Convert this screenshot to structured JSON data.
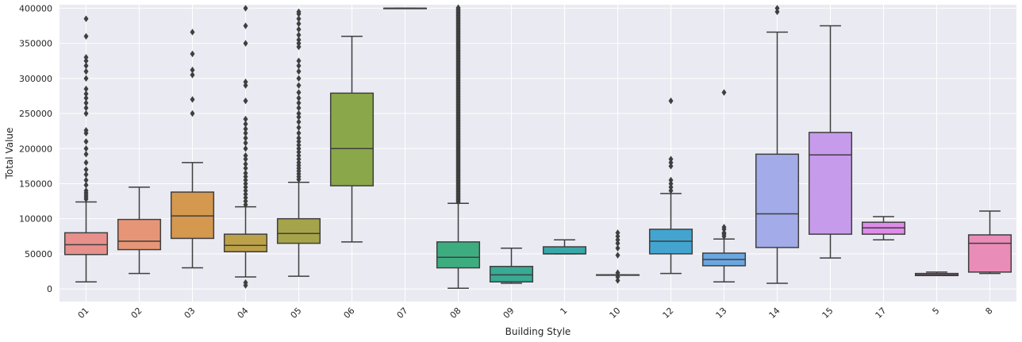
{
  "chart_data": {
    "type": "box",
    "xlabel": "Building Style",
    "ylabel": "Total Value",
    "ylim": [
      -18000,
      405000
    ],
    "yticks": [
      0,
      50000,
      100000,
      150000,
      200000,
      250000,
      300000,
      350000,
      400000
    ],
    "ytick_labels": [
      "0",
      "50000",
      "100000",
      "150000",
      "200000",
      "250000",
      "300000",
      "350000",
      "400000"
    ],
    "grid": true,
    "categories": [
      "01",
      "02",
      "03",
      "04",
      "05",
      "06",
      "07",
      "08",
      "09",
      "1",
      "10",
      "12",
      "13",
      "14",
      "15",
      "17",
      "5",
      "8"
    ],
    "boxes": [
      {
        "category": "01",
        "color": "#e8908c",
        "whisker_low": 10000,
        "q1": 49000,
        "median": 63000,
        "q3": 80000,
        "whisker_high": 124000,
        "outliers": [
          128000,
          131000,
          134000,
          137000,
          140000,
          148000,
          155000,
          163000,
          170000,
          180000,
          192000,
          200000,
          210000,
          222000,
          226000,
          250000,
          258000,
          265000,
          272000,
          278000,
          285000,
          300000,
          310000,
          318000,
          325000,
          330000,
          360000,
          385000
        ]
      },
      {
        "category": "02",
        "color": "#e69677",
        "whisker_low": 22000,
        "q1": 56000,
        "median": 68000,
        "q3": 99000,
        "whisker_high": 145000,
        "outliers": []
      },
      {
        "category": "03",
        "color": "#d5984f",
        "whisker_low": 30000,
        "q1": 72000,
        "median": 104000,
        "q3": 138000,
        "whisker_high": 180000,
        "outliers": [
          250000,
          270000,
          305000,
          312000,
          335000,
          366000
        ]
      },
      {
        "category": "04",
        "color": "#bca149",
        "whisker_low": 17000,
        "q1": 53000,
        "median": 62000,
        "q3": 78000,
        "whisker_high": 117000,
        "outliers": [
          5000,
          9000,
          120000,
          125000,
          130000,
          135000,
          140000,
          145000,
          150000,
          155000,
          160000,
          165000,
          172000,
          178000,
          185000,
          190000,
          200000,
          208000,
          215000,
          222000,
          228000,
          235000,
          242000,
          268000,
          290000,
          295000,
          350000,
          375000,
          400000
        ]
      },
      {
        "category": "05",
        "color": "#a5a44a",
        "whisker_low": 18000,
        "q1": 65000,
        "median": 79000,
        "q3": 100000,
        "whisker_high": 152000,
        "outliers": [
          156000,
          160000,
          164000,
          168000,
          172000,
          176000,
          180000,
          185000,
          190000,
          195000,
          200000,
          205000,
          210000,
          215000,
          222000,
          230000,
          238000,
          245000,
          250000,
          258000,
          265000,
          272000,
          280000,
          290000,
          300000,
          310000,
          318000,
          325000,
          345000,
          350000,
          355000,
          362000,
          370000,
          378000,
          385000,
          392000,
          395000
        ]
      },
      {
        "category": "06",
        "color": "#8aa849",
        "whisker_low": 67000,
        "q1": 147000,
        "median": 200000,
        "q3": 279000,
        "whisker_high": 360000,
        "outliers": []
      },
      {
        "category": "07",
        "color": "#4fac5a",
        "whisker_low": 400000,
        "q1": 400000,
        "median": 400000,
        "q3": 400000,
        "whisker_high": 400000,
        "outliers": []
      },
      {
        "category": "08",
        "color": "#3dad80",
        "whisker_low": 1000,
        "q1": 30000,
        "median": 45000,
        "q3": 67000,
        "whisker_high": 122000,
        "outliers_dense_range": [
          124000,
          402000
        ]
      },
      {
        "category": "09",
        "color": "#38aa95",
        "whisker_low": 8000,
        "q1": 10000,
        "median": 20000,
        "q3": 32000,
        "whisker_high": 58000,
        "outliers": []
      },
      {
        "category": "1",
        "color": "#3aa7a9",
        "whisker_low": 50000,
        "q1": 50000,
        "median": 50000,
        "q3": 60000,
        "whisker_high": 70000,
        "outliers": []
      },
      {
        "category": "10",
        "color": "#3ca4bc",
        "whisker_low": 20000,
        "q1": 20000,
        "median": 20000,
        "q3": 20000,
        "whisker_high": 20000,
        "outliers": [
          12000,
          17000,
          23000,
          48000,
          58000,
          65000,
          70000,
          75000,
          80000
        ]
      },
      {
        "category": "12",
        "color": "#43a5cf",
        "whisker_low": 22000,
        "q1": 50000,
        "median": 68000,
        "q3": 85000,
        "whisker_high": 136000,
        "outliers": [
          140000,
          145000,
          150000,
          155000,
          175000,
          180000,
          185000,
          268000
        ]
      },
      {
        "category": "13",
        "color": "#6aa7e0",
        "whisker_low": 10000,
        "q1": 33000,
        "median": 42000,
        "q3": 51000,
        "whisker_high": 71000,
        "outliers": [
          75000,
          78000,
          80000,
          85000,
          88000,
          280000
        ]
      },
      {
        "category": "14",
        "color": "#a3abe8",
        "whisker_low": 8000,
        "q1": 59000,
        "median": 107000,
        "q3": 192000,
        "whisker_high": 366000,
        "outliers": [
          395000,
          400000
        ]
      },
      {
        "category": "15",
        "color": "#c79beb",
        "whisker_low": 44000,
        "q1": 78000,
        "median": 191000,
        "q3": 223000,
        "whisker_high": 375000,
        "outliers": []
      },
      {
        "category": "17",
        "color": "#de8ce9",
        "whisker_low": 70000,
        "q1": 78000,
        "median": 87000,
        "q3": 95000,
        "whisker_high": 103000,
        "outliers": []
      },
      {
        "category": "5",
        "color": "#e88ad4",
        "whisker_low": 19000,
        "q1": 19000,
        "median": 20000,
        "q3": 22000,
        "whisker_high": 24000,
        "outliers": []
      },
      {
        "category": "8",
        "color": "#ea8cb8",
        "whisker_low": 22000,
        "q1": 24000,
        "median": 65000,
        "q3": 77000,
        "whisker_high": 111000,
        "outliers": []
      }
    ]
  }
}
